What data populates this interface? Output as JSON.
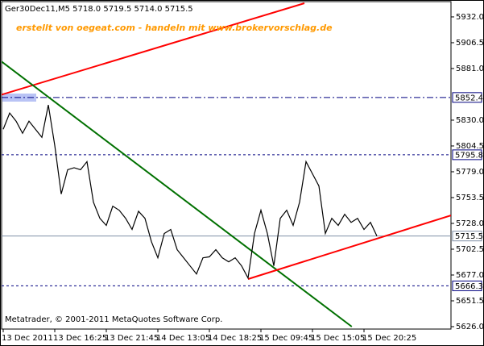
{
  "chart_data": {
    "type": "line",
    "title": "Ger30Dec11,M5  5718.0 5719.5 5714.0 5715.5",
    "annotation": "erstellt von oegeat.com - handeln mit www.brokervorschlag.de",
    "footer": "Metatrader, © 2001-2011 MetaQuotes Software Corp.",
    "color": "#000000",
    "categories": [
      "13 Dec 2011",
      null,
      null,
      null,
      null,
      null,
      null,
      null,
      "13 Dec 16:25",
      null,
      null,
      null,
      null,
      null,
      null,
      null,
      "13 Dec 21:45",
      null,
      null,
      null,
      null,
      null,
      null,
      null,
      "14 Dec 13:05",
      null,
      null,
      null,
      null,
      null,
      null,
      null,
      "14 Dec 18:25",
      null,
      null,
      null,
      null,
      null,
      null,
      null,
      "15 Dec 09:45",
      null,
      null,
      null,
      null,
      null,
      null,
      null,
      "15 Dec 15:05",
      null,
      null,
      null,
      null,
      null,
      null,
      null,
      "15 Dec 20:25",
      null,
      null
    ],
    "values": [
      5821,
      5837,
      5829,
      5817,
      5829,
      5821,
      5813,
      5845,
      5805,
      5757,
      5781,
      5783,
      5781,
      5789,
      5749,
      5733,
      5726,
      5745,
      5741,
      5733,
      5722,
      5740,
      5733,
      5710,
      5694,
      5718,
      5722,
      5702,
      5694,
      5686,
      5678,
      5694,
      5695,
      5702,
      5694,
      5690,
      5694,
      5686,
      5674,
      5718,
      5741,
      5718,
      5686,
      5733,
      5741,
      5726,
      5749,
      5789,
      5777,
      5765,
      5718,
      5733,
      5726,
      5737,
      5729,
      5733,
      5722,
      5729,
      5715.5
    ],
    "ylim": [
      5623.6,
      5947.1
    ],
    "yticks": [
      {
        "value": 5932,
        "label": "5932.0"
      },
      5906.5,
      {
        "value": 5881,
        "label": "5881.0"
      },
      {
        "value": 5830,
        "label": "5830.0"
      },
      5804.5,
      {
        "value": 5779,
        "label": "5779.0"
      },
      5753.5,
      {
        "value": 5728,
        "label": "5728.0"
      },
      5702.5,
      {
        "value": 5677,
        "label": "5677.0"
      },
      5651.5,
      {
        "value": 5626,
        "label": "5626.0"
      }
    ],
    "levels": [
      {
        "value": 5852.4,
        "color": "#000080",
        "style": "dashdot"
      },
      {
        "value": 5795.8,
        "color": "#000080",
        "style": "dash"
      },
      {
        "value": 5715.5,
        "color": "#7f8fa6",
        "style": "solid"
      },
      {
        "value": 5666.3,
        "color": "#000080",
        "style": "dash"
      }
    ],
    "trendlines": [
      {
        "x": [
          -0.5,
          46.75
        ],
        "y": [
          5854.7,
          5945.5
        ],
        "color": "#ff0000"
      },
      {
        "x": [
          -0.5,
          54.1
        ],
        "y": [
          5889.0,
          5626.0
        ],
        "color": "#007000"
      },
      {
        "x": [
          38,
          69.5
        ],
        "y": [
          5673.0,
          5735.9
        ],
        "color": "#ff0000"
      }
    ]
  }
}
